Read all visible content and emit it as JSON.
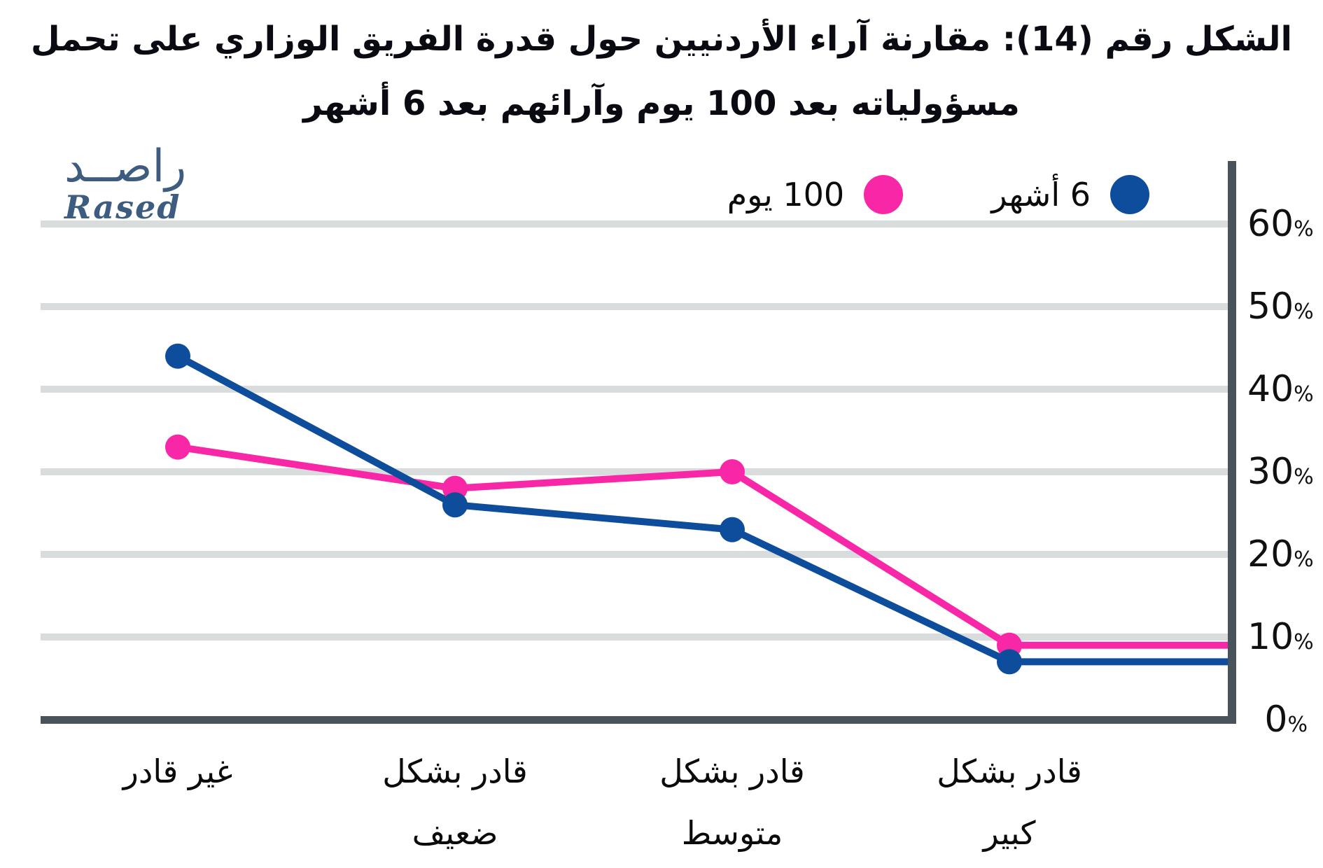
{
  "title": {
    "line1": "الشكل رقم (14): مقارنة آراء الأردنيين حول قدرة الفريق الوزاري على تحمل",
    "line2": "مسؤولياته بعد 100 يوم وآرائهم بعد 6 أشهر"
  },
  "logo": {
    "arabic": "راصــد",
    "latin": "Rased"
  },
  "legend": [
    {
      "label": "100 يوم",
      "color": "#f827a7"
    },
    {
      "label": "6 أشهر",
      "color": "#0e4d9b"
    }
  ],
  "colors": {
    "pink": "#f827a7",
    "blue": "#0e4d9b",
    "grid": "#d8dcdd",
    "axis": "#49545a",
    "text": "#0b0b0b"
  },
  "chart_data": {
    "type": "line",
    "categories": [
      "غير قادر",
      "قادر بشكل ضعيف",
      "قادر بشكل متوسط",
      "قادر بشكل كبير"
    ],
    "categories_multiline": [
      [
        "غير قادر"
      ],
      [
        "قادر بشكل",
        "ضعيف"
      ],
      [
        "قادر بشكل",
        "متوسط"
      ],
      [
        "قادر بشكل",
        "كبير"
      ]
    ],
    "series": [
      {
        "name": "100 يوم",
        "color": "#f827a7",
        "values": [
          33,
          28,
          30,
          9
        ]
      },
      {
        "name": "6 أشهر",
        "color": "#0e4d9b",
        "values": [
          44,
          26,
          23,
          7
        ]
      }
    ],
    "title": "الشكل رقم (14): مقارنة آراء الأردنيين حول قدرة الفريق الوزاري على تحمل مسؤولياته بعد 100 يوم وآرائهم بعد 6 أشهر",
    "xlabel": "",
    "ylabel": "",
    "ytick_values": [
      60,
      50,
      40,
      30,
      20,
      10,
      0
    ],
    "ytick_suffix": "%",
    "ylim": [
      0,
      65
    ],
    "grid": "horizontal",
    "yaxis_side": "right",
    "legend_position": "top-right",
    "extend_last_segment_to_axis": true
  }
}
